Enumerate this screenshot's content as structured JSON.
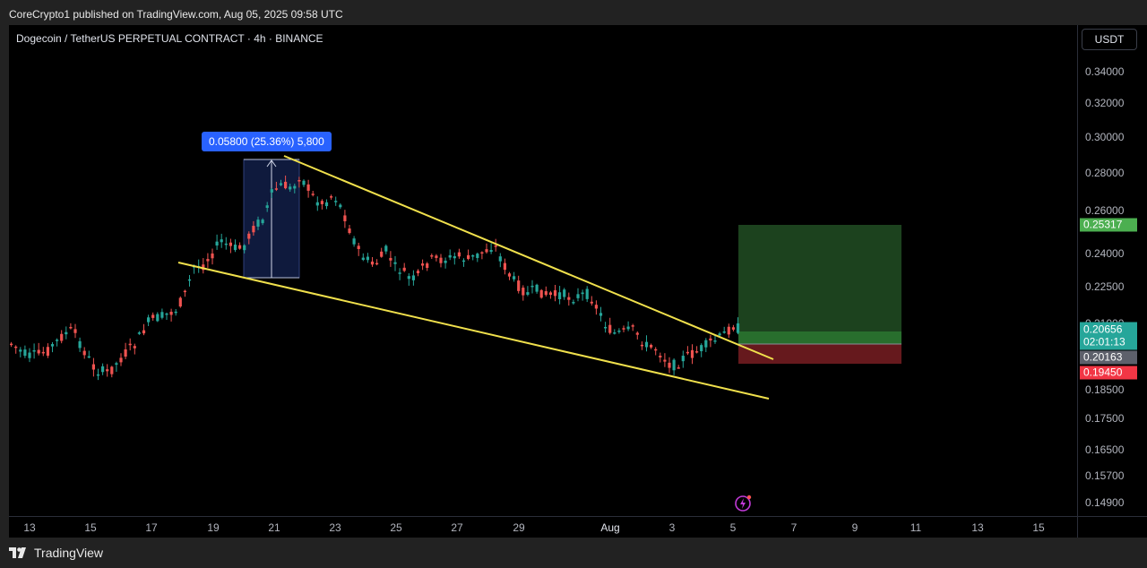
{
  "header": {
    "publish_info": "CoreCrypto1 published on TradingView.com, Aug 05, 2025 09:58 UTC"
  },
  "chart": {
    "symbol_title": "Dogecoin / TetherUS PERPETUAL CONTRACT · 4h · BINANCE",
    "currency": "USDT",
    "measure_label": "0.05800 (25.36%) 5,800",
    "price_labels": [
      "0.34000",
      "0.32000",
      "0.30000",
      "0.28000",
      "0.26000",
      "0.24000",
      "0.22500",
      "0.21000",
      "0.18500",
      "0.17500",
      "0.16500",
      "0.15700",
      "0.14900"
    ],
    "price_tags": {
      "target": "0.25317",
      "last": "0.20656",
      "countdown": "02:01:13",
      "entry": "0.20163",
      "stop": "0.19450"
    },
    "time_labels": [
      "13",
      "15",
      "17",
      "19",
      "21",
      "23",
      "25",
      "27",
      "29",
      "Aug",
      "3",
      "5",
      "7",
      "9",
      "11",
      "13",
      "15"
    ],
    "colors": {
      "up": "#26a69a",
      "down": "#ef5350",
      "trendline": "#f0e04c",
      "profit_zone": "#1e4620",
      "loss_zone": "#6b1a1f",
      "accent": "#2962ff"
    }
  },
  "footer": {
    "brand": "TradingView"
  }
}
